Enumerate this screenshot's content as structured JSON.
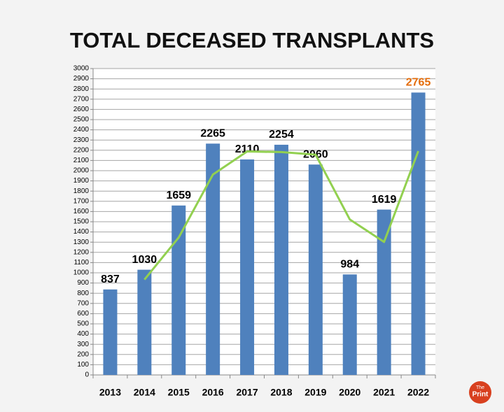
{
  "chart_data": {
    "type": "bar",
    "title": "TOTAL DECEASED TRANSPLANTS",
    "categories": [
      "2013",
      "2014",
      "2015",
      "2016",
      "2017",
      "2018",
      "2019",
      "2020",
      "2021",
      "2022"
    ],
    "series": [
      {
        "type": "bar",
        "color": "#4f81bd",
        "values": [
          837,
          1030,
          1659,
          2265,
          2110,
          2254,
          2060,
          984,
          1619,
          2765
        ]
      },
      {
        "type": "line",
        "color": "#92d050",
        "values": [
          null,
          934,
          1345,
          1962,
          2188,
          2182,
          2157,
          1522,
          1302,
          2192
        ]
      }
    ],
    "value_label_color": "#000000",
    "highlight": {
      "index": 9,
      "color": "#e46c0a"
    },
    "ylim": [
      0,
      3000
    ],
    "yticks": [
      0,
      100,
      200,
      300,
      400,
      500,
      600,
      700,
      800,
      900,
      1000,
      1100,
      1200,
      1300,
      1400,
      1500,
      1600,
      1700,
      1800,
      1900,
      2000,
      2100,
      2200,
      2300,
      2400,
      2500,
      2600,
      2700,
      2800,
      2900,
      3000
    ],
    "grid": true
  },
  "logo": {
    "line1": "The",
    "line2": "Print"
  }
}
